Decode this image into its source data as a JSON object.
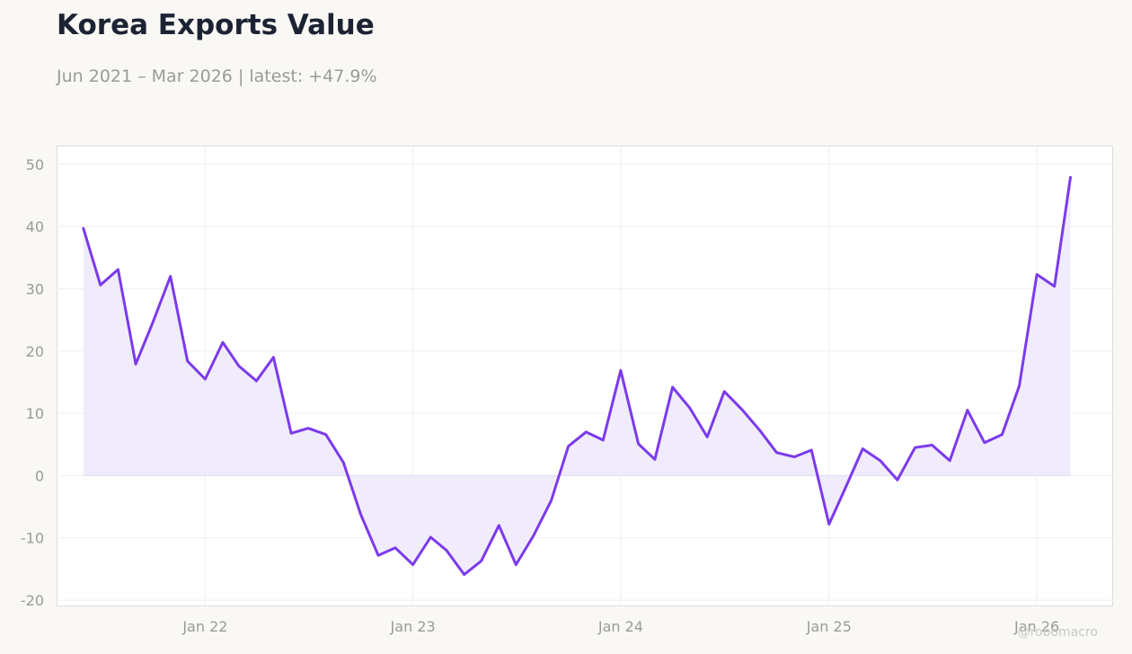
{
  "title": "Korea Exports Value",
  "subtitle": "Jun 2021 – Mar 2026 | latest: +47.9%",
  "watermark": "@robomacro",
  "colors": {
    "line": "#7c3aed",
    "fill": "#f1ecfc",
    "background": "#f9f8f5",
    "plot_background": "#ffffff"
  },
  "chart_data": {
    "type": "area",
    "title": "Korea Exports Value",
    "xlabel": "",
    "ylabel": "",
    "x_ticks": [
      {
        "label": "Jan 22",
        "date": "2022-01"
      },
      {
        "label": "Jan 23",
        "date": "2023-01"
      },
      {
        "label": "Jan 24",
        "date": "2024-01"
      },
      {
        "label": "Jan 25",
        "date": "2025-01"
      },
      {
        "label": "Jan 26",
        "date": "2026-01"
      }
    ],
    "y_ticks": [
      -20,
      -10,
      0,
      10,
      20,
      30,
      40,
      50
    ],
    "ylim": [
      -21,
      53
    ],
    "xlim": [
      "2021-04-15",
      "2026-05-15"
    ],
    "grid": true,
    "legend": "none",
    "series": [
      {
        "x": [
          "2021-06",
          "2021-07",
          "2021-08",
          "2021-09",
          "2021-10",
          "2021-11",
          "2021-12",
          "2022-01",
          "2022-02",
          "2022-03",
          "2022-04",
          "2022-05",
          "2022-06",
          "2022-07",
          "2022-08",
          "2022-09",
          "2022-10",
          "2022-11",
          "2022-12",
          "2023-01",
          "2023-02",
          "2023-03",
          "2023-04",
          "2023-05",
          "2023-06",
          "2023-07",
          "2023-08",
          "2023-09",
          "2023-10",
          "2023-11",
          "2023-12",
          "2024-01",
          "2024-02",
          "2024-03",
          "2024-04",
          "2024-05",
          "2024-06",
          "2024-07",
          "2024-08",
          "2024-09",
          "2024-10",
          "2024-11",
          "2024-12",
          "2025-01",
          "2025-02",
          "2025-03",
          "2025-04",
          "2025-05",
          "2025-06",
          "2025-07",
          "2025-08",
          "2025-09",
          "2025-10",
          "2025-11",
          "2025-12",
          "2026-01",
          "2026-02",
          "2026-03"
        ],
        "values": [
          39.7,
          30.6,
          33.1,
          17.9,
          24.6,
          32.0,
          18.4,
          15.5,
          21.4,
          17.6,
          15.2,
          19.0,
          6.8,
          7.6,
          6.6,
          2.1,
          -6.2,
          -12.8,
          -11.6,
          -14.3,
          -9.9,
          -12.0,
          -15.9,
          -13.7,
          -8.0,
          -14.3,
          -9.6,
          -4.0,
          4.7,
          7.0,
          5.7,
          16.9,
          5.1,
          2.6,
          14.2,
          10.9,
          6.2,
          13.5,
          10.6,
          7.3,
          3.7,
          3.0,
          4.1,
          -7.8,
          -1.5,
          4.3,
          2.4,
          -0.7,
          4.5,
          4.9,
          2.4,
          10.5,
          5.3,
          6.6,
          14.4,
          32.3,
          30.4,
          47.9
        ]
      }
    ]
  }
}
